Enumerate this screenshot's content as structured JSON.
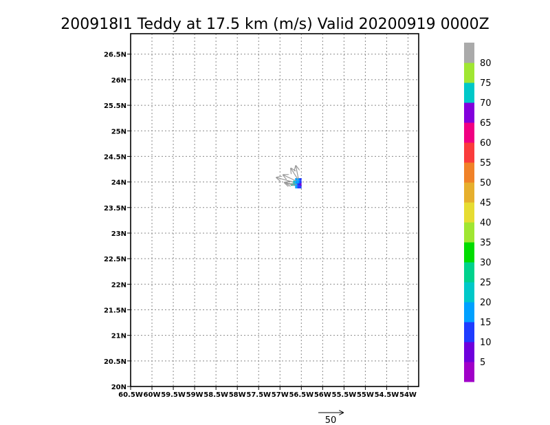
{
  "chart_data": {
    "type": "heatmap",
    "title": "200918I1 Teddy at 17.5 km (m/s) Valid 20200919 0000Z",
    "grid": true,
    "xlim": [
      -60.5,
      -53.75
    ],
    "ylim": [
      20,
      26.9
    ],
    "x_tick_labels": [
      "60.5W",
      "60W",
      "59.5W",
      "59W",
      "58.5W",
      "58W",
      "57.5W",
      "57W",
      "56.5W",
      "56W",
      "55.5W",
      "55W",
      "54.5W",
      "54W"
    ],
    "x_tick_values": [
      -60.5,
      -60,
      -59.5,
      -59,
      -58.5,
      -58,
      -57.5,
      -57,
      -56.5,
      -56,
      -55.5,
      -55,
      -54.5,
      -54
    ],
    "y_tick_labels": [
      "20N",
      "20.5N",
      "21N",
      "21.5N",
      "22N",
      "22.5N",
      "23N",
      "23.5N",
      "24N",
      "24.5N",
      "25N",
      "25.5N",
      "26N",
      "26.5N"
    ],
    "y_tick_values": [
      20,
      20.5,
      21,
      21.5,
      22,
      22.5,
      23,
      23.5,
      24,
      24.5,
      25,
      25.5,
      26,
      26.5
    ],
    "colorbar": {
      "levels": [
        "5",
        "10",
        "15",
        "20",
        "25",
        "30",
        "35",
        "40",
        "45",
        "50",
        "55",
        "60",
        "65",
        "70",
        "75",
        "80"
      ],
      "colors": [
        "#a000c8",
        "#6e00dc",
        "#1e3cff",
        "#00a0ff",
        "#00c8c8",
        "#00d28c",
        "#00dc00",
        "#a0e632",
        "#e6dc32",
        "#e6af2d",
        "#f08228",
        "#fa3c3c",
        "#f00082",
        "#8200dc",
        "#00c8c8",
        "#a0e632",
        "#aaaaaa"
      ]
    },
    "cells": [
      {
        "lon": -56.62,
        "lat": 24.05,
        "value": 17
      },
      {
        "lon": -56.57,
        "lat": 24.05,
        "value": 16
      },
      {
        "lon": -56.52,
        "lat": 24.05,
        "value": 14
      },
      {
        "lon": -56.67,
        "lat": 24.0,
        "value": 21
      },
      {
        "lon": -56.62,
        "lat": 24.0,
        "value": 18
      },
      {
        "lon": -56.57,
        "lat": 24.0,
        "value": 15
      },
      {
        "lon": -56.52,
        "lat": 24.0,
        "value": 11
      },
      {
        "lon": -56.72,
        "lat": 23.95,
        "value": 27
      },
      {
        "lon": -56.67,
        "lat": 23.95,
        "value": 23
      },
      {
        "lon": -56.62,
        "lat": 23.95,
        "value": 19
      },
      {
        "lon": -56.57,
        "lat": 23.95,
        "value": 14
      },
      {
        "lon": -56.52,
        "lat": 23.95,
        "value": 9
      },
      {
        "lon": -56.62,
        "lat": 23.9,
        "value": 17
      },
      {
        "lon": -56.57,
        "lat": 23.9,
        "value": 13
      },
      {
        "lon": -56.52,
        "lat": 23.9,
        "value": 10
      }
    ],
    "vectors": [
      {
        "lon": -56.58,
        "lat": 24.05,
        "u": -14,
        "v": 22
      },
      {
        "lon": -56.62,
        "lat": 24.02,
        "u": -26,
        "v": 12
      },
      {
        "lon": -56.66,
        "lat": 23.99,
        "u": -36,
        "v": 10
      },
      {
        "lon": -56.6,
        "lat": 23.95,
        "u": -22,
        "v": 3
      },
      {
        "lon": -56.57,
        "lat": 24.07,
        "u": -5,
        "v": 25
      },
      {
        "lon": -56.66,
        "lat": 23.93,
        "u": -20,
        "v": 6
      }
    ],
    "reference_vector": {
      "value": 50,
      "label": "50"
    }
  }
}
